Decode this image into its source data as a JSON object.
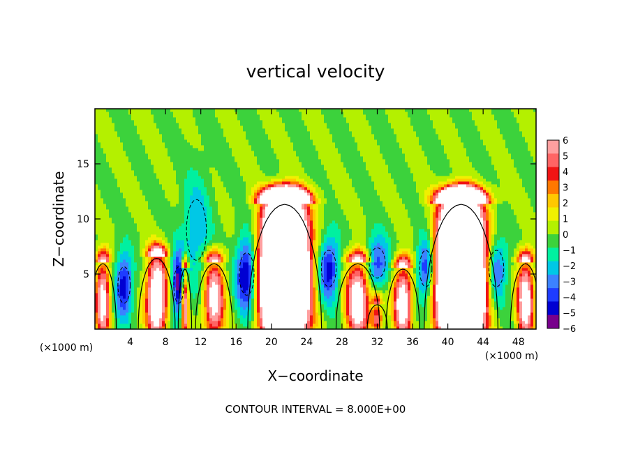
{
  "chart_data": {
    "type": "heatmap",
    "title": "vertical velocity",
    "xlabel": "X−coordinate",
    "ylabel": "Z−coordinate",
    "x_unit": "(×1000 m)",
    "z_unit": "(×1000 m)",
    "xlim": [
      0,
      50
    ],
    "ylim": [
      0,
      20
    ],
    "x_ticks": [
      "4",
      "8",
      "12",
      "16",
      "20",
      "24",
      "28",
      "32",
      "36",
      "40",
      "44",
      "48"
    ],
    "x_tick_values": [
      4,
      8,
      12,
      16,
      20,
      24,
      28,
      32,
      36,
      40,
      44,
      48
    ],
    "y_ticks": [
      "5",
      "10",
      "15"
    ],
    "y_tick_values": [
      5,
      10,
      15
    ],
    "colorbar": {
      "labels": [
        "6",
        "5",
        "4",
        "3",
        "2",
        "1",
        "0",
        "−1",
        "−2",
        "−3",
        "−4",
        "−5",
        "−6"
      ],
      "values": [
        6,
        5,
        4,
        3,
        2,
        1,
        0,
        -1,
        -2,
        -3,
        -4,
        -5,
        -6
      ],
      "colors": [
        "#ff9f9f",
        "#ff6464",
        "#f01414",
        "#ff7800",
        "#ffc800",
        "#f0f000",
        "#b4f000",
        "#3cd23c",
        "#00f0a0",
        "#00c8e6",
        "#3c82ff",
        "#1e3cff",
        "#0000d2",
        "#78008c"
      ]
    },
    "footer": "CONTOUR INTERVAL = 8.000E+00",
    "background_color": "#35d45c",
    "updrafts": [
      {
        "x_center": 21.5,
        "x_width": 2.2,
        "z_top": 11.5,
        "peak": 40
      },
      {
        "x_center": 41.5,
        "x_width": 2.2,
        "z_top": 11.5,
        "peak": 40
      },
      {
        "x_center": 7.0,
        "x_width": 1.1,
        "z_top": 6.5,
        "peak": 12
      },
      {
        "x_center": 0.9,
        "x_width": 0.8,
        "z_top": 6.0,
        "peak": 9
      },
      {
        "x_center": 10.2,
        "x_width": 0.4,
        "z_top": 5.5,
        "peak": 9
      },
      {
        "x_center": 13.5,
        "x_width": 1.1,
        "z_top": 6.0,
        "peak": 9
      },
      {
        "x_center": 29.8,
        "x_width": 1.3,
        "z_top": 6.0,
        "peak": 10
      },
      {
        "x_center": 34.9,
        "x_width": 1.0,
        "z_top": 5.5,
        "peak": 10
      },
      {
        "x_center": 48.8,
        "x_width": 0.9,
        "z_top": 6.0,
        "peak": 10
      },
      {
        "x_center": 32.0,
        "x_width": 0.6,
        "z_top": 2.2,
        "peak": 6
      }
    ],
    "downdrafts": [
      {
        "x_center": 3.3,
        "x_width": 1.0,
        "z_center": 4.0,
        "z_width": 3.0,
        "peak": -6
      },
      {
        "x_center": 9.5,
        "x_width": 0.8,
        "z_center": 4.0,
        "z_width": 3.0,
        "peak": -7
      },
      {
        "x_center": 11.5,
        "x_width": 1.6,
        "z_center": 9.0,
        "z_width": 5.0,
        "peak": -3
      },
      {
        "x_center": 17.2,
        "x_width": 1.2,
        "z_center": 5.0,
        "z_width": 3.5,
        "peak": -7
      },
      {
        "x_center": 26.5,
        "x_width": 1.2,
        "z_center": 5.5,
        "z_width": 3.0,
        "peak": -6
      },
      {
        "x_center": 32.0,
        "x_width": 1.3,
        "z_center": 6.0,
        "z_width": 2.5,
        "peak": -5
      },
      {
        "x_center": 37.5,
        "x_width": 1.0,
        "z_center": 5.5,
        "z_width": 3.0,
        "peak": -6
      },
      {
        "x_center": 45.5,
        "x_width": 1.2,
        "z_center": 5.5,
        "z_width": 3.0,
        "peak": -5
      }
    ]
  }
}
